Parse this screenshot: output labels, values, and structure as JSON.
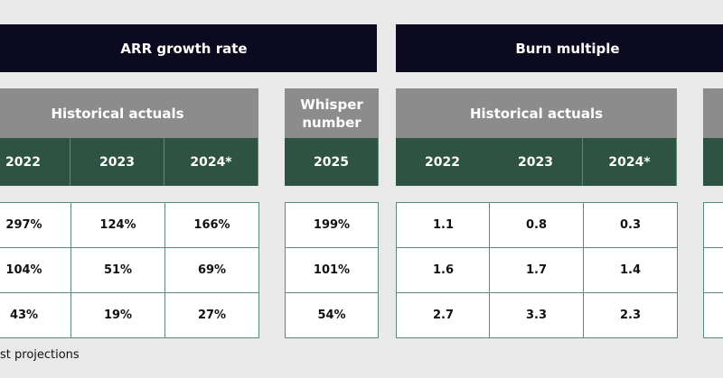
{
  "arr_growth": {
    "title": "ARR growth rate",
    "historical": {
      "label": "Historical actuals",
      "years": [
        "2022",
        "2023",
        "2024*"
      ],
      "rows": [
        [
          "297%",
          "124%",
          "166%"
        ],
        [
          "104%",
          "51%",
          "69%"
        ],
        [
          "43%",
          "19%",
          "27%"
        ]
      ]
    },
    "whisper": {
      "label": "Whisper number",
      "year": "2025",
      "rows": [
        "199%",
        "101%",
        "54%"
      ]
    }
  },
  "burn_multiple": {
    "title": "Burn multiple",
    "historical": {
      "label": "Historical actuals",
      "years": [
        "2022",
        "2023",
        "2024*"
      ],
      "rows": [
        [
          "1.1",
          "0.8",
          "0.3"
        ],
        [
          "1.6",
          "1.7",
          "1.4"
        ],
        [
          "2.7",
          "3.3",
          "2.3"
        ]
      ]
    }
  },
  "footnote": "st projections"
}
